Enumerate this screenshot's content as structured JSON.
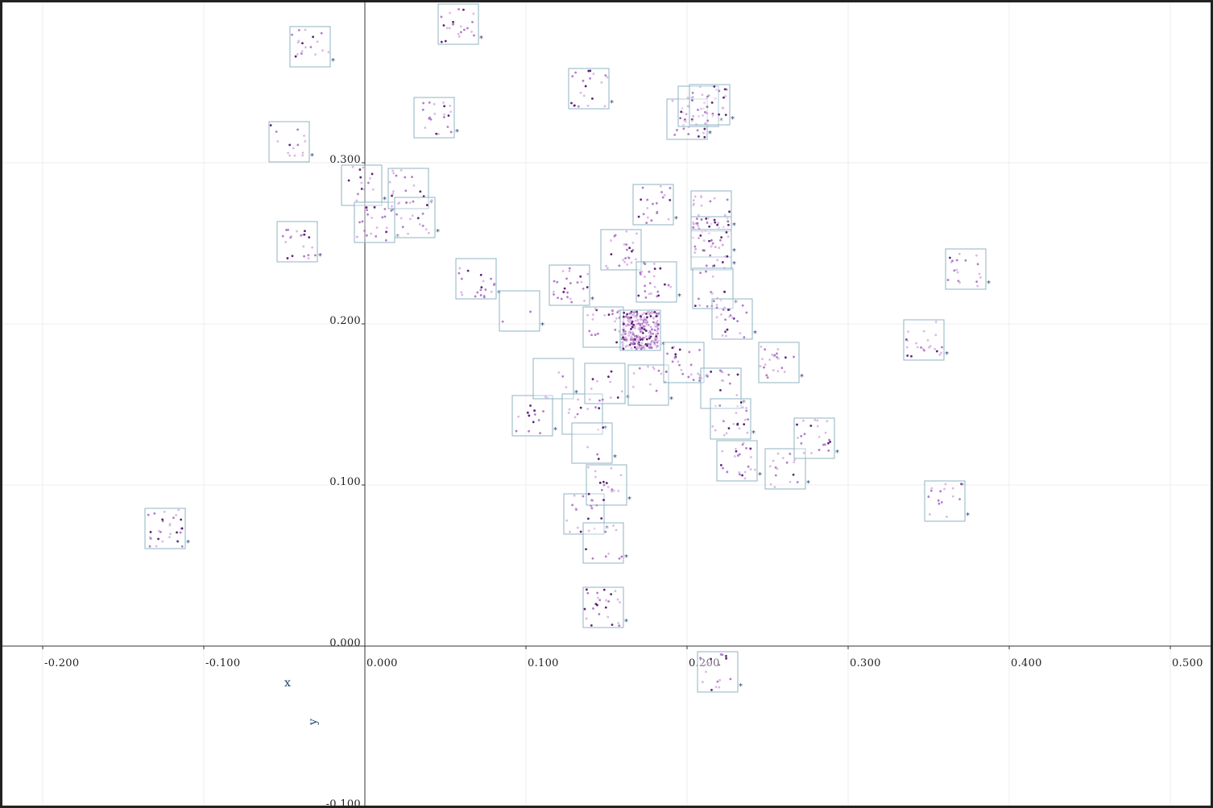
{
  "chart_data": {
    "type": "scatter",
    "title": "",
    "xlabel": "x",
    "ylabel": "y",
    "xlim": [
      -0.2,
      0.525
    ],
    "ylim": [
      -0.1,
      0.4
    ],
    "grid": true,
    "x_ticks": [
      "-0.200",
      "-0.100",
      "0.000",
      "0.100",
      "0.200",
      "0.300",
      "0.400",
      "0.500"
    ],
    "y_ticks": [
      "-0.100",
      "0.000",
      "0.100",
      "0.200",
      "0.300"
    ],
    "colors": {
      "box_stroke": "#8fb3c3",
      "dot_light": "#dcb8e6",
      "dot_mid": "#b27cc9",
      "dot_dark": "#5d2477",
      "marker": "#1d3e6e",
      "grid": "#ececec",
      "axis": "#333333"
    },
    "marker_glyph": "*",
    "points": [
      {
        "x": -0.124,
        "y": 0.073,
        "n": 28
      },
      {
        "x": -0.042,
        "y": 0.251,
        "n": 20
      },
      {
        "x": -0.047,
        "y": 0.313,
        "n": 14
      },
      {
        "x": -0.034,
        "y": 0.372,
        "n": 18
      },
      {
        "x": -0.002,
        "y": 0.286,
        "n": 14
      },
      {
        "x": 0.006,
        "y": 0.263,
        "n": 22
      },
      {
        "x": 0.027,
        "y": 0.284,
        "n": 16
      },
      {
        "x": 0.031,
        "y": 0.266,
        "n": 18
      },
      {
        "x": 0.058,
        "y": 0.386,
        "n": 22
      },
      {
        "x": 0.043,
        "y": 0.328,
        "n": 20
      },
      {
        "x": 0.069,
        "y": 0.228,
        "n": 20
      },
      {
        "x": 0.096,
        "y": 0.208,
        "n": 2
      },
      {
        "x": 0.104,
        "y": 0.143,
        "n": 14
      },
      {
        "x": 0.117,
        "y": 0.166,
        "n": 4
      },
      {
        "x": 0.127,
        "y": 0.224,
        "n": 24
      },
      {
        "x": 0.135,
        "y": 0.144,
        "n": 10
      },
      {
        "x": 0.141,
        "y": 0.126,
        "n": 4
      },
      {
        "x": 0.136,
        "y": 0.082,
        "n": 16
      },
      {
        "x": 0.148,
        "y": 0.064,
        "n": 10
      },
      {
        "x": 0.139,
        "y": 0.346,
        "n": 20
      },
      {
        "x": 0.148,
        "y": 0.198,
        "n": 22
      },
      {
        "x": 0.149,
        "y": 0.163,
        "n": 12
      },
      {
        "x": 0.15,
        "y": 0.1,
        "n": 18
      },
      {
        "x": 0.148,
        "y": 0.024,
        "n": 24
      },
      {
        "x": 0.159,
        "y": 0.246,
        "n": 24
      },
      {
        "x": 0.171,
        "y": 0.196,
        "n": 260
      },
      {
        "x": 0.176,
        "y": 0.162,
        "n": 12
      },
      {
        "x": 0.179,
        "y": 0.274,
        "n": 20
      },
      {
        "x": 0.181,
        "y": 0.226,
        "n": 24
      },
      {
        "x": 0.198,
        "y": 0.176,
        "n": 24
      },
      {
        "x": 0.2,
        "y": 0.327,
        "n": 22
      },
      {
        "x": 0.207,
        "y": 0.335,
        "n": 18
      },
      {
        "x": 0.214,
        "y": 0.336,
        "n": 22
      },
      {
        "x": 0.215,
        "y": 0.27,
        "n": 24
      },
      {
        "x": 0.215,
        "y": 0.254,
        "n": 26
      },
      {
        "x": 0.215,
        "y": 0.246,
        "n": 20
      },
      {
        "x": 0.216,
        "y": 0.222,
        "n": 14
      },
      {
        "x": 0.221,
        "y": 0.16,
        "n": 14
      },
      {
        "x": 0.228,
        "y": 0.203,
        "n": 24
      },
      {
        "x": 0.227,
        "y": 0.141,
        "n": 20
      },
      {
        "x": 0.231,
        "y": 0.115,
        "n": 22
      },
      {
        "x": 0.219,
        "y": -0.016,
        "n": 18
      },
      {
        "x": 0.257,
        "y": 0.176,
        "n": 22
      },
      {
        "x": 0.261,
        "y": 0.11,
        "n": 16
      },
      {
        "x": 0.279,
        "y": 0.129,
        "n": 22
      },
      {
        "x": 0.347,
        "y": 0.19,
        "n": 22
      },
      {
        "x": 0.36,
        "y": 0.09,
        "n": 16
      },
      {
        "x": 0.373,
        "y": 0.234,
        "n": 18
      }
    ]
  }
}
